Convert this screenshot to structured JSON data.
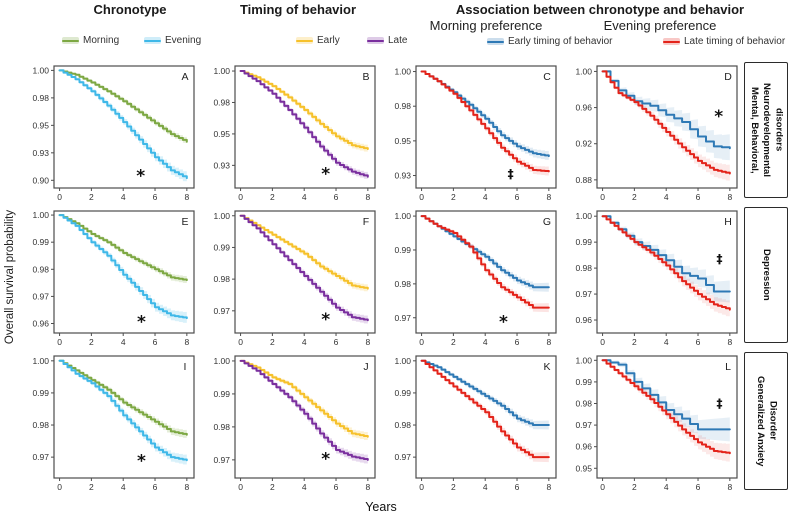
{
  "header": {
    "col1_title": "Chronotype",
    "col2_title": "Timing of behavior",
    "assoc_title": "Association between chronotype  and behavior",
    "assoc_sub_morning": "Morning preference",
    "assoc_sub_evening": "Evening preference"
  },
  "legends": {
    "chronotype": [
      {
        "label": "Morning",
        "color": "#7DA843"
      },
      {
        "label": "Evening",
        "color": "#3FB8E8"
      }
    ],
    "timing": [
      {
        "label": "Early",
        "color": "#F6C12B"
      },
      {
        "label": "Late",
        "color": "#7A2F9E"
      }
    ],
    "assoc": [
      {
        "label": "Early timing of behavior",
        "color": "#2E79B5"
      },
      {
        "label": "Late timing of behavior",
        "color": "#E3231A"
      }
    ]
  },
  "axes": {
    "ylabel": "Overall survival probability",
    "xlabel": "Years"
  },
  "row_labels": [
    "Mental, Behavioral,\nNeurodevelopmental\ndisorders",
    "Depression",
    "Generalized Anxiety\nDisorder"
  ],
  "chart_data": [
    {
      "id": "A",
      "row": 0,
      "col": 0,
      "type": "line",
      "x": [
        0,
        1,
        2,
        3,
        4,
        5,
        6,
        7,
        8
      ],
      "xticks": [
        0,
        2,
        4,
        6,
        8
      ],
      "xlim": [
        -0.35,
        8.45
      ],
      "ylim": [
        0.893,
        1.004
      ],
      "yticks": [
        {
          "label": "1.00",
          "v": 1.0
        },
        {
          "label": "0.98",
          "v": 0.975
        },
        {
          "label": "0.95",
          "v": 0.95
        },
        {
          "label": "0.93",
          "v": 0.925
        },
        {
          "label": "0.90",
          "v": 0.9
        }
      ],
      "series": [
        {
          "name": "Morning",
          "color": "#7DA843",
          "band_end": 3,
          "band_op": 0.2,
          "step": false,
          "values": [
            1.0,
            0.996,
            0.989,
            0.981,
            0.972,
            0.962,
            0.952,
            0.942,
            0.935
          ]
        },
        {
          "name": "Evening",
          "color": "#3FB8E8",
          "band_end": 5,
          "band_op": 0.2,
          "step": false,
          "values": [
            1.0,
            0.992,
            0.981,
            0.968,
            0.953,
            0.937,
            0.921,
            0.909,
            0.902
          ]
        }
      ],
      "annotation": {
        "symbol": "*",
        "x": 5.1,
        "y": 0.906
      }
    },
    {
      "id": "B",
      "row": 0,
      "col": 1,
      "type": "line",
      "x": [
        0,
        1,
        2,
        3,
        4,
        5,
        6,
        7,
        8
      ],
      "xticks": [
        0,
        2,
        4,
        6,
        8
      ],
      "xlim": [
        -0.35,
        8.45
      ],
      "ylim": [
        0.907,
        1.004
      ],
      "yticks": [
        {
          "label": "1.00",
          "v": 1.0
        },
        {
          "label": "0.98",
          "v": 0.975
        },
        {
          "label": "0.95",
          "v": 0.95
        },
        {
          "label": "0.93",
          "v": 0.925
        }
      ],
      "series": [
        {
          "name": "Early",
          "color": "#F6C12B",
          "band_end": 3.5,
          "band_op": 0.22,
          "step": false,
          "values": [
            1.0,
            0.995,
            0.988,
            0.979,
            0.969,
            0.958,
            0.948,
            0.941,
            0.938
          ]
        },
        {
          "name": "Late",
          "color": "#7A2F9E",
          "band_end": 3.5,
          "band_op": 0.18,
          "step": false,
          "values": [
            1.0,
            0.992,
            0.982,
            0.969,
            0.955,
            0.94,
            0.927,
            0.92,
            0.916
          ]
        }
      ],
      "annotation": {
        "symbol": "*",
        "x": 5.35,
        "y": 0.92
      }
    },
    {
      "id": "C",
      "row": 0,
      "col": 2,
      "type": "line",
      "x": [
        0,
        1,
        2,
        3,
        4,
        5,
        6,
        7,
        8
      ],
      "xticks": [
        0,
        2,
        4,
        6,
        8
      ],
      "xlim": [
        -0.35,
        8.45
      ],
      "ylim": [
        0.916,
        1.004
      ],
      "yticks": [
        {
          "label": "1.00",
          "v": 1.0
        },
        {
          "label": "0.98",
          "v": 0.975
        },
        {
          "label": "0.95",
          "v": 0.95
        },
        {
          "label": "0.93",
          "v": 0.925
        }
      ],
      "series": [
        {
          "name": "Early timing of behavior",
          "color": "#2E79B5",
          "band_end": 4.5,
          "band_op": 0.15,
          "step": false,
          "values": [
            1.0,
            0.993,
            0.985,
            0.976,
            0.966,
            0.954,
            0.946,
            0.941,
            0.939
          ]
        },
        {
          "name": "Late timing of behavior",
          "color": "#E3231A",
          "band_end": 4.5,
          "band_op": 0.12,
          "step": false,
          "values": [
            1.0,
            0.993,
            0.984,
            0.972,
            0.959,
            0.945,
            0.935,
            0.929,
            0.928
          ]
        }
      ],
      "annotation": {
        "symbol": "‡",
        "x": 5.6,
        "y": 0.926
      }
    },
    {
      "id": "D",
      "row": 0,
      "col": 3,
      "type": "line",
      "x": [
        0,
        1,
        2,
        3,
        4,
        5,
        6,
        7,
        8
      ],
      "xticks": [
        0,
        2,
        4,
        6,
        8
      ],
      "xlim": [
        -0.35,
        8.45
      ],
      "ylim": [
        0.871,
        1.006
      ],
      "yticks": [
        {
          "label": "1.00",
          "v": 1.0
        },
        {
          "label": "0.96",
          "v": 0.96
        },
        {
          "label": "0.92",
          "v": 0.92
        },
        {
          "label": "0.88",
          "v": 0.88
        }
      ],
      "series": [
        {
          "name": "Early timing of behavior",
          "color": "#2E79B5",
          "band_end": 13,
          "band_op": 0.12,
          "step": true,
          "values": [
            1.0,
            0.979,
            0.967,
            0.962,
            0.952,
            0.944,
            0.928,
            0.917,
            0.915
          ]
        },
        {
          "name": "Late timing of behavior",
          "color": "#E3231A",
          "band_end": 8,
          "band_op": 0.1,
          "step": false,
          "values": [
            1.0,
            0.976,
            0.966,
            0.951,
            0.933,
            0.916,
            0.901,
            0.891,
            0.887
          ]
        }
      ],
      "annotation": {
        "symbol": "*",
        "x": 7.3,
        "y": 0.953
      }
    },
    {
      "id": "E",
      "row": 1,
      "col": 0,
      "type": "line",
      "x": [
        0,
        1,
        2,
        3,
        4,
        5,
        6,
        7,
        8
      ],
      "xticks": [
        0,
        2,
        4,
        6,
        8
      ],
      "xlim": [
        -0.35,
        8.45
      ],
      "ylim": [
        0.9565,
        1.0015
      ],
      "yticks": [
        {
          "label": "1.00",
          "v": 1.0
        },
        {
          "label": "0.99",
          "v": 0.99
        },
        {
          "label": "0.98",
          "v": 0.98
        },
        {
          "label": "0.97",
          "v": 0.97
        },
        {
          "label": "0.96",
          "v": 0.96
        }
      ],
      "series": [
        {
          "name": "Morning",
          "color": "#7DA843",
          "band_end": 3.5,
          "band_op": 0.2,
          "step": false,
          "values": [
            1.0,
            0.997,
            0.993,
            0.99,
            0.986,
            0.983,
            0.98,
            0.977,
            0.976
          ]
        },
        {
          "name": "Evening",
          "color": "#3FB8E8",
          "band_end": 5.5,
          "band_op": 0.2,
          "step": false,
          "values": [
            1.0,
            0.996,
            0.99,
            0.985,
            0.978,
            0.972,
            0.966,
            0.963,
            0.962
          ]
        }
      ],
      "annotation": {
        "symbol": "*",
        "x": 5.15,
        "y": 0.9615
      }
    },
    {
      "id": "F",
      "row": 1,
      "col": 1,
      "type": "line",
      "x": [
        0,
        1,
        2,
        3,
        4,
        5,
        6,
        7,
        8
      ],
      "xticks": [
        0,
        2,
        4,
        6,
        8
      ],
      "xlim": [
        -0.35,
        8.45
      ],
      "ylim": [
        0.963,
        1.0015
      ],
      "yticks": [
        {
          "label": "1.00",
          "v": 1.0
        },
        {
          "label": "0.99",
          "v": 0.99
        },
        {
          "label": "0.98",
          "v": 0.98
        },
        {
          "label": "0.97",
          "v": 0.97
        }
      ],
      "series": [
        {
          "name": "Early",
          "color": "#F6C12B",
          "band_end": 3.5,
          "band_op": 0.22,
          "step": false,
          "values": [
            1.0,
            0.997,
            0.994,
            0.991,
            0.988,
            0.984,
            0.981,
            0.978,
            0.977
          ]
        },
        {
          "name": "Late",
          "color": "#7A2F9E",
          "band_end": 4,
          "band_op": 0.18,
          "step": false,
          "values": [
            1.0,
            0.996,
            0.991,
            0.986,
            0.981,
            0.976,
            0.971,
            0.968,
            0.967
          ]
        }
      ],
      "annotation": {
        "symbol": "*",
        "x": 5.35,
        "y": 0.968
      }
    },
    {
      "id": "G",
      "row": 1,
      "col": 2,
      "type": "line",
      "x": [
        0,
        1,
        2,
        3,
        4,
        5,
        6,
        7,
        8
      ],
      "xticks": [
        0,
        2,
        4,
        6,
        8
      ],
      "xlim": [
        -0.35,
        8.45
      ],
      "ylim": [
        0.9655,
        1.0015
      ],
      "yticks": [
        {
          "label": "1.00",
          "v": 1.0
        },
        {
          "label": "0.99",
          "v": 0.99
        },
        {
          "label": "0.98",
          "v": 0.98
        },
        {
          "label": "0.97",
          "v": 0.97
        }
      ],
      "series": [
        {
          "name": "Early timing of behavior",
          "color": "#2E79B5",
          "band_end": 4.5,
          "band_op": 0.15,
          "step": false,
          "values": [
            1.0,
            0.997,
            0.994,
            0.991,
            0.988,
            0.984,
            0.981,
            0.979,
            0.979
          ]
        },
        {
          "name": "Late timing of behavior",
          "color": "#E3231A",
          "band_end": 4.5,
          "band_op": 0.12,
          "step": false,
          "values": [
            1.0,
            0.997,
            0.995,
            0.991,
            0.984,
            0.979,
            0.976,
            0.973,
            0.973
          ]
        }
      ],
      "annotation": {
        "symbol": "*",
        "x": 5.15,
        "y": 0.9695
      }
    },
    {
      "id": "H",
      "row": 1,
      "col": 3,
      "type": "line",
      "x": [
        0,
        1,
        2,
        3,
        4,
        5,
        6,
        7,
        8
      ],
      "xticks": [
        0,
        2,
        4,
        6,
        8
      ],
      "xlim": [
        -0.35,
        8.45
      ],
      "ylim": [
        0.955,
        1.002
      ],
      "yticks": [
        {
          "label": "1.00",
          "v": 1.0
        },
        {
          "label": "0.99",
          "v": 0.99
        },
        {
          "label": "0.98",
          "v": 0.98
        },
        {
          "label": "0.97",
          "v": 0.97
        },
        {
          "label": "0.96",
          "v": 0.96
        }
      ],
      "series": [
        {
          "name": "Early timing of behavior",
          "color": "#2E79B5",
          "band_end": 11,
          "band_op": 0.12,
          "step": true,
          "values": [
            1.0,
            0.995,
            0.99,
            0.987,
            0.983,
            0.978,
            0.976,
            0.971,
            0.971
          ]
        },
        {
          "name": "Late timing of behavior",
          "color": "#E3231A",
          "band_end": 8,
          "band_op": 0.1,
          "step": false,
          "values": [
            1.0,
            0.995,
            0.99,
            0.986,
            0.981,
            0.975,
            0.97,
            0.966,
            0.964
          ]
        }
      ],
      "annotation": {
        "symbol": "‡",
        "x": 7.35,
        "y": 0.9835
      }
    },
    {
      "id": "I",
      "row": 2,
      "col": 0,
      "type": "line",
      "x": [
        0,
        1,
        2,
        3,
        4,
        5,
        6,
        7,
        8
      ],
      "xticks": [
        0,
        2,
        4,
        6,
        8
      ],
      "xlim": [
        -0.35,
        8.45
      ],
      "ylim": [
        0.9635,
        1.0015
      ],
      "yticks": [
        {
          "label": "1.00",
          "v": 1.0
        },
        {
          "label": "0.99",
          "v": 0.99
        },
        {
          "label": "0.98",
          "v": 0.98
        },
        {
          "label": "0.97",
          "v": 0.97
        }
      ],
      "series": [
        {
          "name": "Morning",
          "color": "#7DA843",
          "band_end": 4,
          "band_op": 0.2,
          "step": false,
          "values": [
            1.0,
            0.997,
            0.994,
            0.991,
            0.987,
            0.984,
            0.981,
            0.978,
            0.977
          ]
        },
        {
          "name": "Evening",
          "color": "#3FB8E8",
          "band_end": 5,
          "band_op": 0.2,
          "step": false,
          "values": [
            1.0,
            0.996,
            0.993,
            0.989,
            0.983,
            0.978,
            0.973,
            0.97,
            0.969
          ]
        }
      ],
      "annotation": {
        "symbol": "*",
        "x": 5.15,
        "y": 0.9695
      }
    },
    {
      "id": "J",
      "row": 2,
      "col": 1,
      "type": "line",
      "x": [
        0,
        1,
        2,
        3,
        4,
        5,
        6,
        7,
        8
      ],
      "xticks": [
        0,
        2,
        4,
        6,
        8
      ],
      "xlim": [
        -0.35,
        8.45
      ],
      "ylim": [
        0.9645,
        1.0015
      ],
      "yticks": [
        {
          "label": "1.00",
          "v": 1.0
        },
        {
          "label": "0.99",
          "v": 0.99
        },
        {
          "label": "0.98",
          "v": 0.98
        },
        {
          "label": "0.97",
          "v": 0.97
        }
      ],
      "series": [
        {
          "name": "Early",
          "color": "#F6C12B",
          "band_end": 4,
          "band_op": 0.22,
          "step": false,
          "values": [
            1.0,
            0.998,
            0.995,
            0.993,
            0.989,
            0.985,
            0.981,
            0.978,
            0.977
          ]
        },
        {
          "name": "Late",
          "color": "#7A2F9E",
          "band_end": 4.5,
          "band_op": 0.18,
          "step": false,
          "values": [
            1.0,
            0.997,
            0.993,
            0.989,
            0.984,
            0.978,
            0.973,
            0.971,
            0.97
          ]
        }
      ],
      "annotation": {
        "symbol": "*",
        "x": 5.35,
        "y": 0.971
      }
    },
    {
      "id": "K",
      "row": 2,
      "col": 2,
      "type": "line",
      "x": [
        0,
        1,
        2,
        3,
        4,
        5,
        6,
        7,
        8
      ],
      "xticks": [
        0,
        2,
        4,
        6,
        8
      ],
      "xlim": [
        -0.35,
        8.45
      ],
      "ylim": [
        0.9635,
        1.0015
      ],
      "yticks": [
        {
          "label": "1.00",
          "v": 1.0
        },
        {
          "label": "0.99",
          "v": 0.99
        },
        {
          "label": "0.98",
          "v": 0.98
        },
        {
          "label": "0.97",
          "v": 0.97
        }
      ],
      "series": [
        {
          "name": "Early timing of behavior",
          "color": "#2E79B5",
          "band_end": 4.5,
          "band_op": 0.15,
          "step": false,
          "values": [
            1.0,
            0.998,
            0.995,
            0.992,
            0.989,
            0.986,
            0.982,
            0.98,
            0.98
          ]
        },
        {
          "name": "Late timing of behavior",
          "color": "#E3231A",
          "band_end": 5,
          "band_op": 0.12,
          "step": false,
          "values": [
            1.0,
            0.996,
            0.992,
            0.988,
            0.984,
            0.978,
            0.973,
            0.97,
            0.97
          ]
        }
      ],
      "annotation": null
    },
    {
      "id": "L",
      "row": 2,
      "col": 3,
      "type": "line",
      "x": [
        0,
        1,
        2,
        3,
        4,
        5,
        6,
        7,
        8
      ],
      "xticks": [
        0,
        2,
        4,
        6,
        8
      ],
      "xlim": [
        -0.35,
        8.45
      ],
      "ylim": [
        0.9455,
        1.002
      ],
      "yticks": [
        {
          "label": "1.00",
          "v": 1.0
        },
        {
          "label": "0.99",
          "v": 0.99
        },
        {
          "label": "0.98",
          "v": 0.98
        },
        {
          "label": "0.97",
          "v": 0.97
        },
        {
          "label": "0.96",
          "v": 0.96
        },
        {
          "label": "0.95",
          "v": 0.95
        }
      ],
      "series": [
        {
          "name": "Early timing of behavior",
          "color": "#2E79B5",
          "band_end": 12,
          "band_op": 0.12,
          "step": true,
          "values": [
            1.0,
            0.998,
            0.99,
            0.984,
            0.977,
            0.973,
            0.968,
            0.968,
            0.968
          ]
        },
        {
          "name": "Late timing of behavior",
          "color": "#E3231A",
          "band_end": 9,
          "band_op": 0.1,
          "step": false,
          "values": [
            1.0,
            0.994,
            0.988,
            0.982,
            0.975,
            0.968,
            0.962,
            0.958,
            0.957
          ]
        }
      ],
      "annotation": {
        "symbol": "‡",
        "x": 7.35,
        "y": 0.98
      }
    }
  ]
}
